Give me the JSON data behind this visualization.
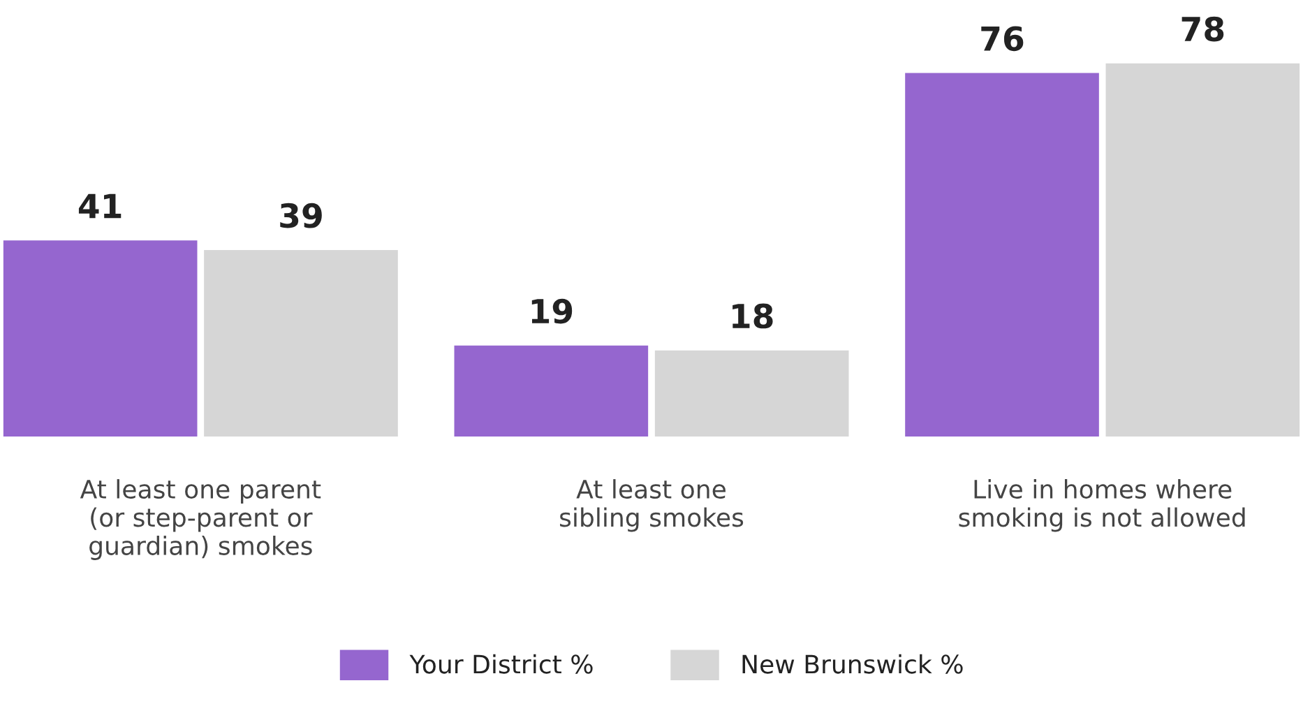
{
  "chart_data": {
    "type": "bar",
    "categories": [
      "At least one parent\n(or step-parent or\nguardian) smokes",
      "At least one\nsibling smokes",
      "Live in homes where\nsmoking is not allowed"
    ],
    "series": [
      {
        "name": "Your District %",
        "color": "#9566cf",
        "values": [
          41,
          19,
          76
        ]
      },
      {
        "name": "New Brunswick %",
        "color": "#d6d6d6",
        "values": [
          39,
          18,
          78
        ]
      }
    ],
    "data_labels": true,
    "legend": "bottom",
    "grid": false
  }
}
